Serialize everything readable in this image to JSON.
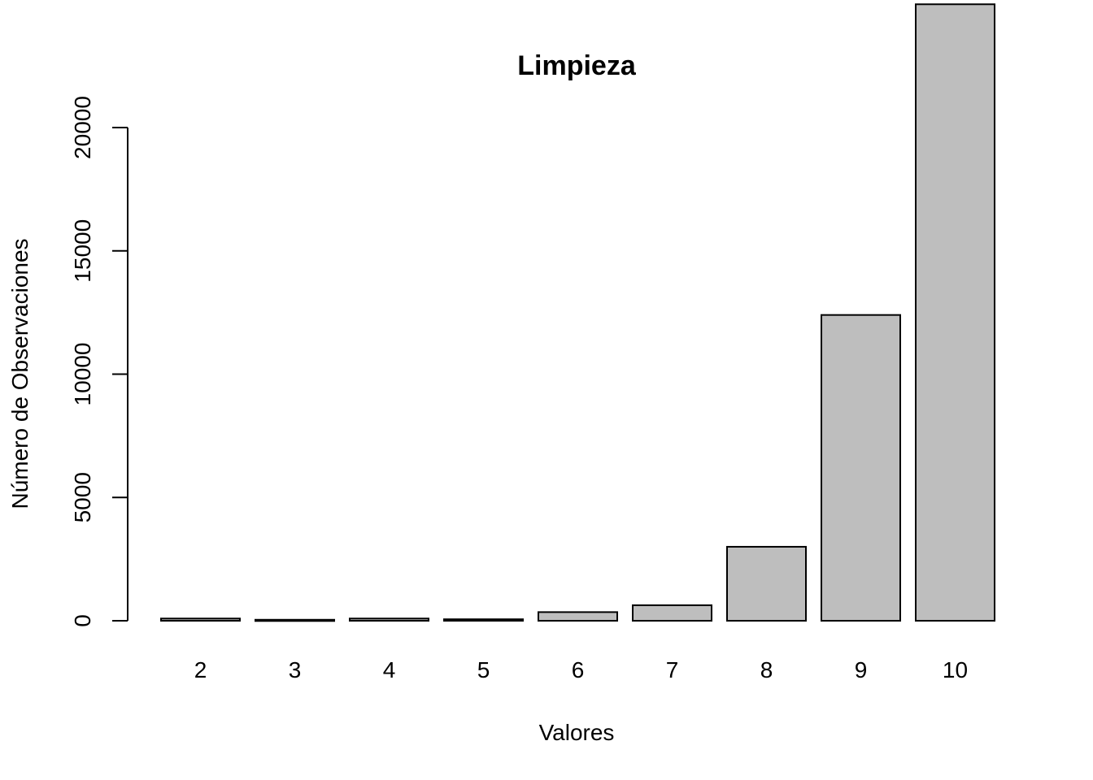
{
  "chart_data": {
    "type": "bar",
    "title": "Limpieza",
    "xlabel": "Valores",
    "ylabel": "Número de Observaciones",
    "categories": [
      "2",
      "3",
      "4",
      "5",
      "6",
      "7",
      "8",
      "9",
      "10"
    ],
    "values": [
      90,
      40,
      90,
      60,
      350,
      630,
      3000,
      12400,
      25000
    ],
    "ylim": [
      0,
      25000
    ],
    "yticks": [
      0,
      5000,
      10000,
      15000,
      20000
    ],
    "ytick_labels": [
      "0",
      "5000",
      "10000",
      "15000",
      "20000"
    ],
    "bar_color": "#bebebe",
    "grid": false,
    "legend": "none"
  }
}
